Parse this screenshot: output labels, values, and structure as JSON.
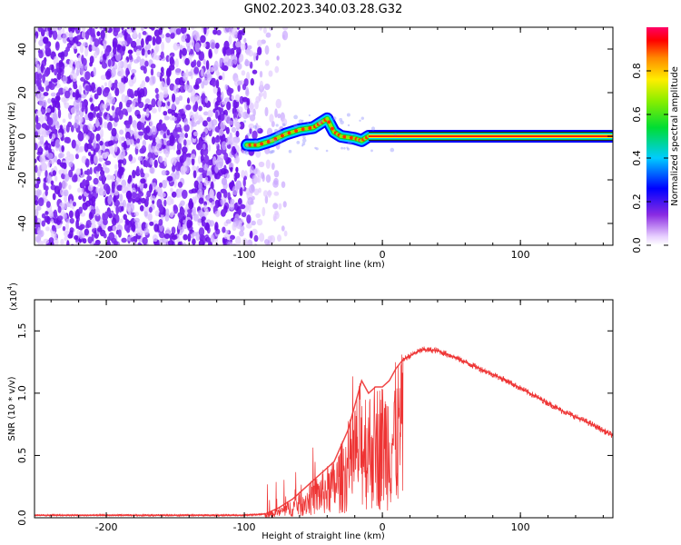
{
  "title": "GN02.2023.340.03.28.G32",
  "chart_data": [
    {
      "type": "heatmap",
      "title": "GN02.2023.340.03.28.G32",
      "xlabel": "Height of straight line (km)",
      "ylabel": "Frequency (Hz)",
      "xlim": [
        -252,
        167
      ],
      "ylim": [
        -50,
        50
      ],
      "x_ticks": [
        "-200",
        "-100",
        "0",
        "100"
      ],
      "y_ticks": [
        "-40",
        "-20",
        "0",
        "20",
        "40"
      ],
      "colorbar": {
        "label": "Normalized spectral amplitude",
        "range": [
          0,
          1
        ],
        "ticks": [
          "0.0",
          "0.2",
          "0.4",
          "0.6",
          "0.8"
        ]
      },
      "regions": [
        {
          "description": "noise",
          "x_range": [
            -252,
            -90
          ],
          "y_range": [
            -50,
            50
          ],
          "amplitude": 0.1
        },
        {
          "description": "signal track",
          "points": [
            [
              -98,
              -4
            ],
            [
              -90,
              -4
            ],
            [
              -80,
              -2
            ],
            [
              -70,
              1
            ],
            [
              -60,
              3
            ],
            [
              -50,
              4
            ],
            [
              -45,
              6
            ],
            [
              -40,
              8
            ],
            [
              -35,
              2
            ],
            [
              -30,
              0
            ],
            [
              -20,
              -1
            ],
            [
              -15,
              -2
            ],
            [
              -10,
              0
            ],
            [
              0,
              0
            ],
            [
              167,
              0
            ]
          ],
          "amplitude": 1.0
        }
      ]
    },
    {
      "type": "line",
      "xlabel": "Height of straight line (km)",
      "ylabel": "SNR (10 * v/v)",
      "y_scale_label": "(x10",
      "y_scale_exp": "4",
      "xlim": [
        -252,
        167
      ],
      "ylim": [
        0,
        1.75
      ],
      "x_ticks": [
        "-200",
        "-100",
        "0",
        "100"
      ],
      "y_ticks": [
        "0.0",
        "0.5",
        "1.0",
        "1.5"
      ],
      "color": "#ee3333",
      "series": [
        {
          "x": [
            -252,
            -200,
            -150,
            -100,
            -85,
            -75,
            -65,
            -55,
            -45,
            -35,
            -25,
            -20,
            -15,
            -10,
            -5,
            0,
            5,
            10,
            15,
            20,
            25,
            30,
            40,
            50,
            60,
            70,
            80,
            90,
            100,
            110,
            120,
            130,
            140,
            150,
            160,
            167
          ],
          "y": [
            0.02,
            0.02,
            0.02,
            0.02,
            0.03,
            0.08,
            0.15,
            0.25,
            0.35,
            0.45,
            0.7,
            0.9,
            1.1,
            1.0,
            1.05,
            1.05,
            1.1,
            1.2,
            1.27,
            1.3,
            1.33,
            1.35,
            1.34,
            1.3,
            1.25,
            1.2,
            1.15,
            1.1,
            1.04,
            0.98,
            0.92,
            0.86,
            0.81,
            0.76,
            0.7,
            0.66
          ]
        }
      ]
    }
  ]
}
